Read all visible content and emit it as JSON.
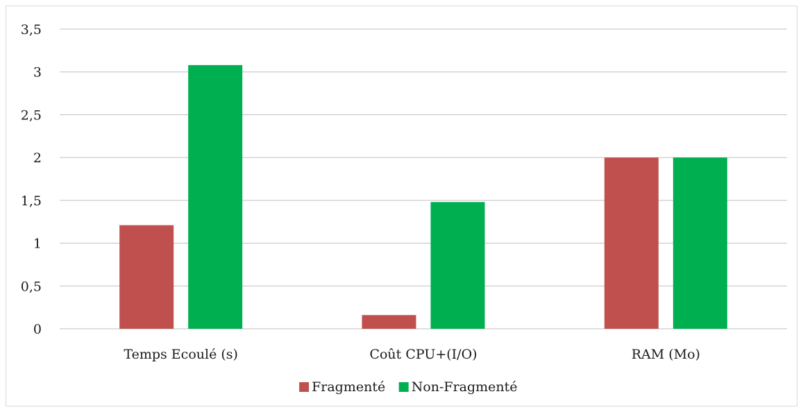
{
  "chart_data": {
    "type": "bar",
    "title": "",
    "xlabel": "",
    "ylabel": "",
    "categories": [
      "Temps Ecoulé (s)",
      "Coût CPU+(I/O)",
      "RAM (Mo)"
    ],
    "series": [
      {
        "name": "Fragmenté",
        "color": "#c0504d",
        "values": [
          1.21,
          0.16,
          2.0
        ]
      },
      {
        "name": "Non-Fragmenté",
        "color": "#00b050",
        "values": [
          3.08,
          1.48,
          2.0
        ]
      }
    ],
    "ylim": [
      0,
      3.5
    ],
    "yticks": [
      "0",
      "0,5",
      "1",
      "1,5",
      "2",
      "2,5",
      "3",
      "3,5"
    ],
    "ytick_values": [
      0,
      0.5,
      1,
      1.5,
      2,
      2.5,
      3,
      3.5
    ],
    "grid": true,
    "gridline_color": "#bfbfbf",
    "legend_position": "bottom"
  }
}
